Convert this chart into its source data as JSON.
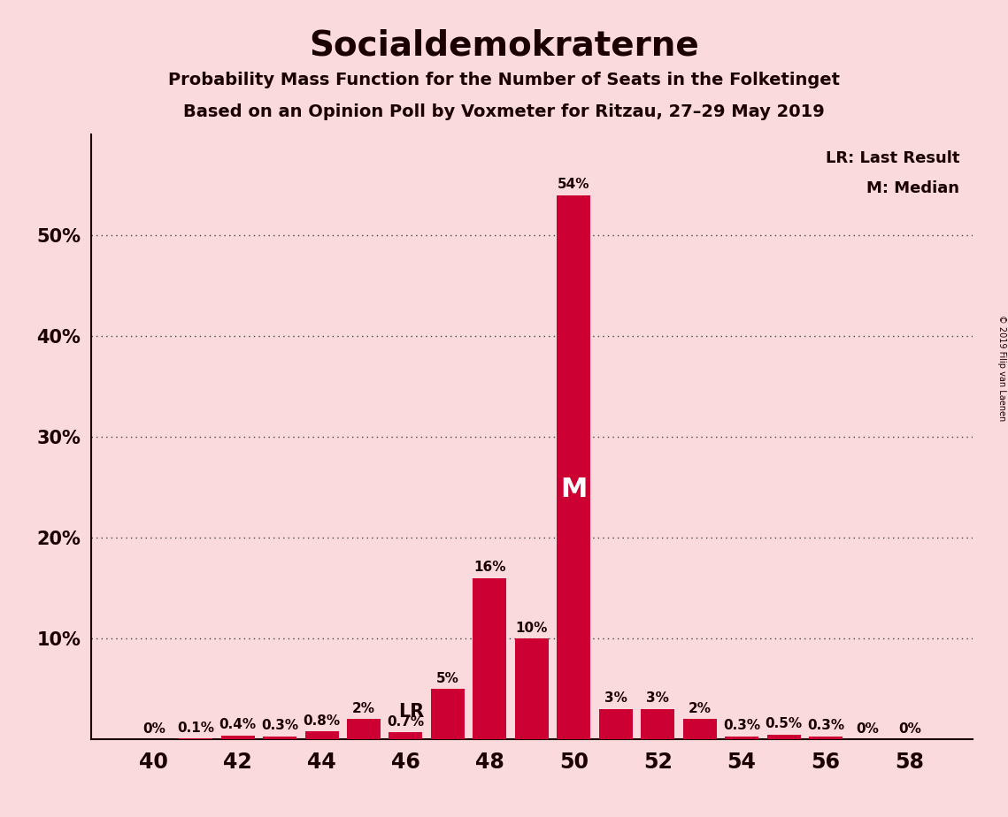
{
  "title": "Socialdemokraterne",
  "subtitle1": "Probability Mass Function for the Number of Seats in the Folketinget",
  "subtitle2": "Based on an Opinion Poll by Voxmeter for Ritzau, 27–29 May 2019",
  "copyright": "© 2019 Filip van Laenen",
  "seats": [
    40,
    41,
    42,
    43,
    44,
    45,
    46,
    47,
    48,
    49,
    50,
    51,
    52,
    53,
    54,
    55,
    56,
    57,
    58
  ],
  "probabilities": [
    0.0,
    0.1,
    0.4,
    0.3,
    0.8,
    2.0,
    0.7,
    5.0,
    16.0,
    10.0,
    54.0,
    3.0,
    3.0,
    2.0,
    0.3,
    0.5,
    0.3,
    0.0,
    0.0
  ],
  "bar_color": "#cc0033",
  "background_color": "#fadadd",
  "text_color": "#1a0000",
  "LR_seat": 47,
  "median_seat": 50,
  "yticks": [
    10,
    20,
    30,
    40,
    50
  ],
  "xticks": [
    40,
    42,
    44,
    46,
    48,
    50,
    52,
    54,
    56,
    58
  ],
  "ylim": [
    0,
    60
  ],
  "xlim": [
    38.5,
    59.5
  ],
  "legend_LR": "LR: Last Result",
  "legend_M": "M: Median",
  "label_fontsize": 11,
  "tick_fontsize": 15,
  "title_fontsize": 28,
  "subtitle_fontsize": 14
}
